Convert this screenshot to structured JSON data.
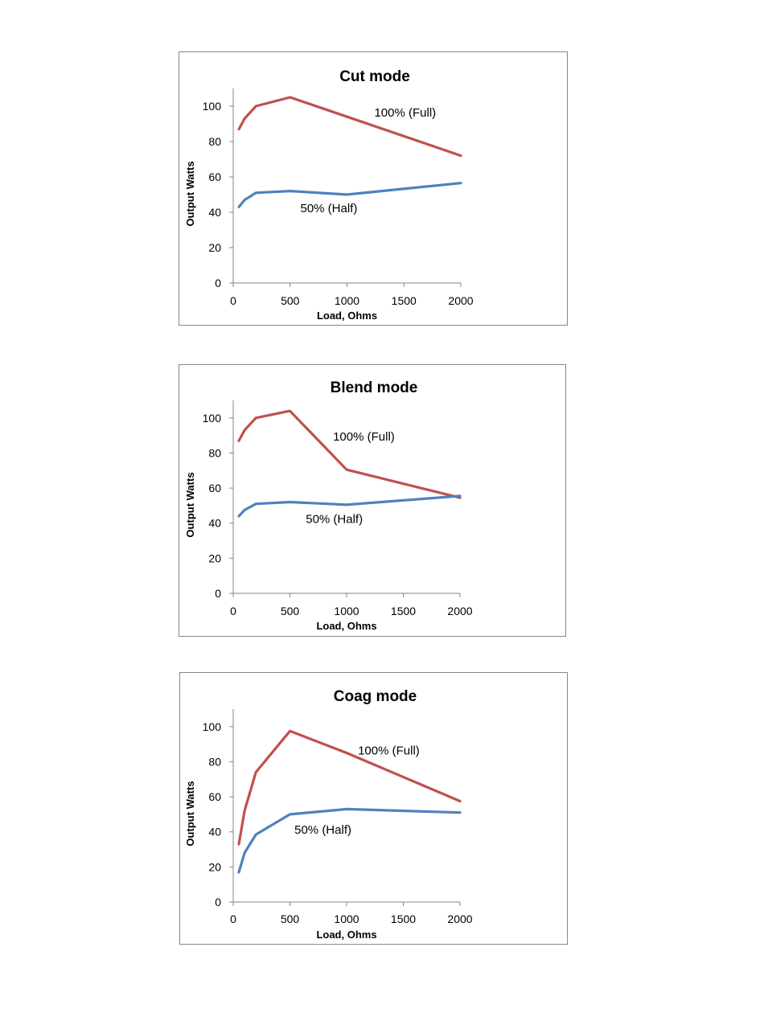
{
  "chart_data": [
    {
      "type": "line",
      "title": "Cut mode",
      "xlabel": "Load, Ohms",
      "ylabel": "Output Watts",
      "xlim": [
        0,
        2000
      ],
      "ylim": [
        0,
        110
      ],
      "xticks": [
        0,
        500,
        1000,
        1500,
        2000
      ],
      "yticks": [
        0,
        20,
        40,
        60,
        80,
        100
      ],
      "grid": false,
      "legend": "none",
      "series": [
        {
          "color": "#c0504d",
          "x": [
            50,
            100,
            200,
            500,
            1000,
            2000
          ],
          "y": [
            87,
            93,
            100,
            105,
            94,
            72
          ]
        },
        {
          "color": "#4f81bd",
          "x": [
            50,
            100,
            200,
            500,
            1000,
            2000
          ],
          "y": [
            43,
            47,
            51,
            52,
            50,
            56.5
          ]
        }
      ],
      "annotations": [
        {
          "text": "100% (Full)",
          "x": 1240,
          "y": 94
        },
        {
          "text": "50% (Half)",
          "x": 590,
          "y": 40
        }
      ]
    },
    {
      "type": "line",
      "title": "Blend mode",
      "xlabel": "Load, Ohms",
      "ylabel": "Output Watts",
      "xlim": [
        0,
        2000
      ],
      "ylim": [
        0,
        110
      ],
      "xticks": [
        0,
        500,
        1000,
        1500,
        2000
      ],
      "yticks": [
        0,
        20,
        40,
        60,
        80,
        100
      ],
      "grid": false,
      "legend": "none",
      "series": [
        {
          "color": "#c0504d",
          "x": [
            50,
            100,
            200,
            500,
            1000,
            2000
          ],
          "y": [
            87,
            93,
            100,
            104,
            70.5,
            54.5
          ]
        },
        {
          "color": "#4f81bd",
          "x": [
            50,
            100,
            200,
            500,
            1000,
            2000
          ],
          "y": [
            44,
            47.5,
            51,
            52,
            50.5,
            55.5
          ]
        }
      ],
      "annotations": [
        {
          "text": "100% (Full)",
          "x": 880,
          "y": 87
        },
        {
          "text": "50% (Half)",
          "x": 640,
          "y": 40
        }
      ]
    },
    {
      "type": "line",
      "title": "Coag mode",
      "xlabel": "Load, Ohms",
      "ylabel": "Output Watts",
      "xlim": [
        0,
        2000
      ],
      "ylim": [
        0,
        110
      ],
      "xticks": [
        0,
        500,
        1000,
        1500,
        2000
      ],
      "yticks": [
        0,
        20,
        40,
        60,
        80,
        100
      ],
      "grid": false,
      "legend": "none",
      "series": [
        {
          "color": "#c0504d",
          "x": [
            50,
            100,
            200,
            500,
            1000,
            2000
          ],
          "y": [
            33,
            52,
            74,
            97.5,
            85,
            57.5
          ]
        },
        {
          "color": "#4f81bd",
          "x": [
            50,
            100,
            200,
            500,
            1000,
            2000
          ],
          "y": [
            17,
            28,
            38.5,
            50,
            53,
            51
          ]
        }
      ],
      "annotations": [
        {
          "text": "100% (Full)",
          "x": 1100,
          "y": 84
        },
        {
          "text": "50% (Half)",
          "x": 540,
          "y": 39
        }
      ]
    }
  ]
}
